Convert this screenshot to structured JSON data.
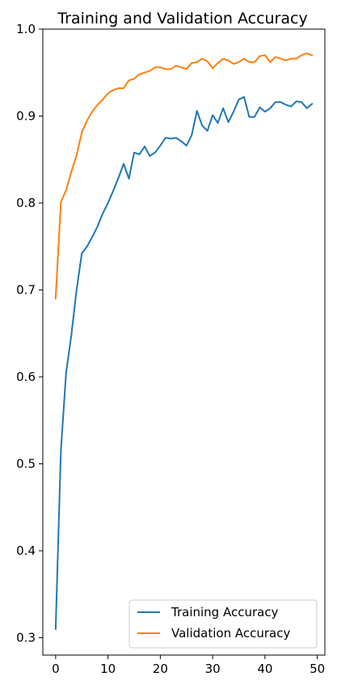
{
  "chart_data": {
    "type": "line",
    "title": "Training and Validation Accuracy",
    "xlabel": "",
    "ylabel": "",
    "xlim": [
      -2.45,
      51.45
    ],
    "ylim": [
      0.28,
      1.0
    ],
    "xticks": [
      0,
      10,
      20,
      30,
      40,
      50
    ],
    "yticks": [
      0.3,
      0.4,
      0.5,
      0.6,
      0.7,
      0.8,
      0.9,
      1.0
    ],
    "xtick_labels": [
      "0",
      "10",
      "20",
      "30",
      "40",
      "50"
    ],
    "ytick_labels": [
      "0.3",
      "0.4",
      "0.5",
      "0.6",
      "0.7",
      "0.8",
      "0.9",
      "1.0"
    ],
    "grid": false,
    "legend_position": "lower-right",
    "x": [
      0,
      1,
      2,
      3,
      4,
      5,
      6,
      7,
      8,
      9,
      10,
      11,
      12,
      13,
      14,
      15,
      16,
      17,
      18,
      19,
      20,
      21,
      22,
      23,
      24,
      25,
      26,
      27,
      28,
      29,
      30,
      31,
      32,
      33,
      34,
      35,
      36,
      37,
      38,
      39,
      40,
      41,
      42,
      43,
      44,
      45,
      46,
      47,
      48,
      49
    ],
    "series": [
      {
        "name": "Training Accuracy",
        "color": "#1f77b4",
        "values": [
          0.31,
          0.515,
          0.605,
          0.648,
          0.7,
          0.742,
          0.75,
          0.761,
          0.773,
          0.788,
          0.8,
          0.814,
          0.829,
          0.845,
          0.828,
          0.858,
          0.856,
          0.865,
          0.854,
          0.858,
          0.866,
          0.875,
          0.874,
          0.875,
          0.871,
          0.866,
          0.878,
          0.906,
          0.889,
          0.883,
          0.901,
          0.892,
          0.909,
          0.893,
          0.905,
          0.919,
          0.922,
          0.899,
          0.899,
          0.91,
          0.905,
          0.909,
          0.916,
          0.916,
          0.913,
          0.911,
          0.917,
          0.916,
          0.909,
          0.914
        ]
      },
      {
        "name": "Validation Accuracy",
        "color": "#ff7f0e",
        "values": [
          0.69,
          0.801,
          0.815,
          0.836,
          0.855,
          0.881,
          0.895,
          0.905,
          0.913,
          0.919,
          0.926,
          0.93,
          0.932,
          0.932,
          0.941,
          0.943,
          0.948,
          0.95,
          0.952,
          0.956,
          0.956,
          0.954,
          0.954,
          0.958,
          0.956,
          0.954,
          0.961,
          0.962,
          0.966,
          0.963,
          0.955,
          0.961,
          0.966,
          0.964,
          0.96,
          0.962,
          0.966,
          0.962,
          0.962,
          0.969,
          0.97,
          0.962,
          0.968,
          0.966,
          0.964,
          0.966,
          0.966,
          0.97,
          0.972,
          0.97
        ]
      }
    ]
  }
}
